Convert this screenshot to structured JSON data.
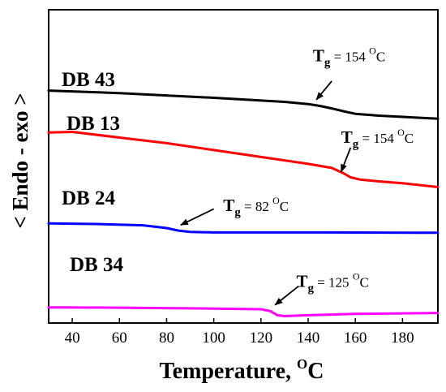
{
  "chart_data": {
    "type": "line",
    "xlabel": "Temperature, ",
    "xlabel_unit": "C",
    "xlabel_unit_sup": "O",
    "ylabel": "< Endo - exo >",
    "xlim": [
      30,
      195
    ],
    "ylim": [
      0,
      100
    ],
    "x_ticks": [
      40,
      60,
      80,
      100,
      120,
      140,
      160,
      180
    ],
    "y_ticks": [],
    "grid": false,
    "series": [
      {
        "name": "DB 43",
        "color": "#000000",
        "x": [
          30,
          60,
          100,
          130,
          140,
          145,
          150,
          155,
          160,
          170,
          180,
          195
        ],
        "y": [
          74.2,
          73.4,
          71.9,
          70.6,
          69.9,
          69.3,
          68.5,
          67.6,
          66.8,
          66.2,
          65.8,
          65.2
        ]
      },
      {
        "name": "DB 13",
        "color": "#ff0000",
        "x": [
          30,
          40,
          60,
          80,
          100,
          120,
          140,
          150,
          155,
          158,
          162,
          170,
          180,
          195
        ],
        "y": [
          60.8,
          61.0,
          59.2,
          57.4,
          55.2,
          53.0,
          50.8,
          49.5,
          47.8,
          46.5,
          45.8,
          45.2,
          44.6,
          43.4
        ]
      },
      {
        "name": "DB 24",
        "color": "#0000ff",
        "x": [
          30,
          50,
          70,
          80,
          85,
          90,
          100,
          120,
          150,
          195
        ],
        "y": [
          31.8,
          31.6,
          31.2,
          30.3,
          29.5,
          29.1,
          28.9,
          28.9,
          28.9,
          28.8
        ]
      },
      {
        "name": "DB 34",
        "color": "#ff00ff",
        "x": [
          30,
          60,
          100,
          120,
          124,
          127,
          130,
          140,
          160,
          195
        ],
        "y": [
          5.0,
          4.9,
          4.6,
          4.4,
          3.8,
          2.5,
          2.2,
          2.5,
          2.9,
          3.2
        ]
      }
    ],
    "annotations": [
      {
        "label": "T",
        "sub": "g",
        "value": "154",
        "unit_sup": "O",
        "unit": "C",
        "sep": " = ",
        "text_x": 142,
        "text_y": 83.5,
        "arrow_from": [
          150,
          77.2
        ],
        "arrow_to": [
          143.5,
          71.3
        ]
      },
      {
        "label": "T",
        "sub": "g",
        "value": "154",
        "unit_sup": "O",
        "unit": "C",
        "sep": " = ",
        "text_x": 154,
        "text_y": 57.5,
        "arrow_from": [
          158,
          56.0
        ],
        "arrow_to": [
          154,
          48.3
        ]
      },
      {
        "label": "T",
        "sub": "g",
        "value": "82",
        "unit_sup": "O",
        "unit": "C",
        "sep": " = ",
        "text_x": 104,
        "text_y": 35.8,
        "arrow_from": [
          100,
          36.4
        ],
        "arrow_to": [
          86,
          31.3
        ]
      },
      {
        "label": "T",
        "sub": "g",
        "value": "125",
        "unit_sup": "O",
        "unit": "C",
        "sep": " = ",
        "text_x": 135,
        "text_y": 11.5,
        "arrow_from": [
          136,
          11.8
        ],
        "arrow_to": [
          126,
          5.8
        ]
      }
    ]
  }
}
